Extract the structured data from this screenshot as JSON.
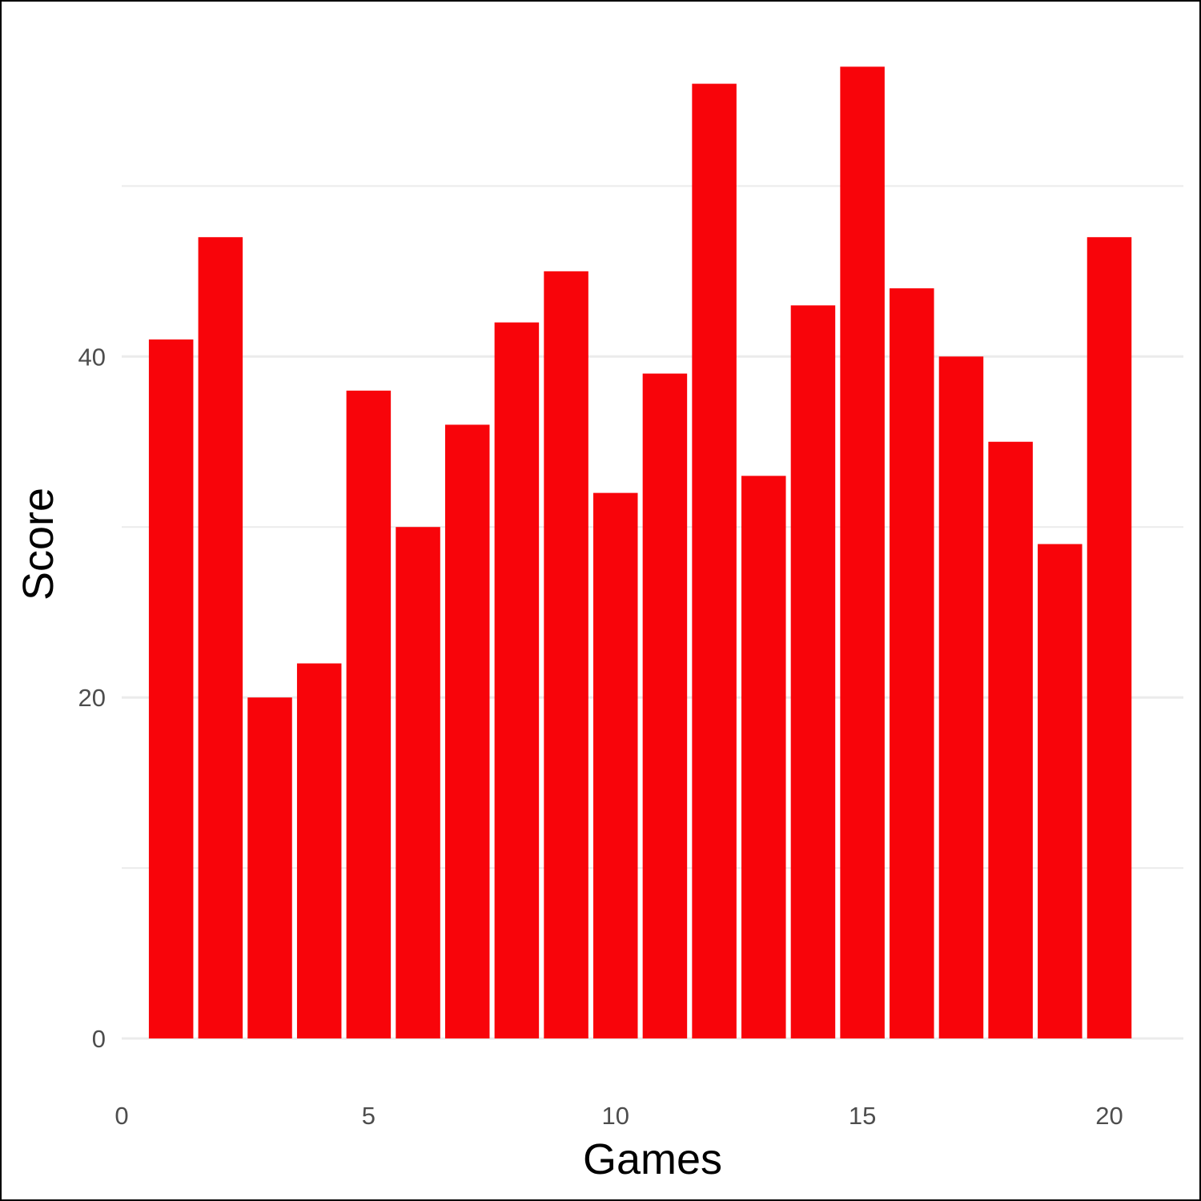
{
  "chart_data": {
    "type": "bar",
    "x": [
      1,
      2,
      3,
      4,
      5,
      6,
      7,
      8,
      9,
      10,
      11,
      12,
      13,
      14,
      15,
      16,
      17,
      18,
      19,
      20
    ],
    "values": [
      41,
      47,
      20,
      22,
      38,
      30,
      36,
      42,
      45,
      32,
      39,
      56,
      33,
      43,
      57,
      44,
      40,
      35,
      29,
      47
    ],
    "title": "",
    "xlabel": "Games",
    "ylabel": "Score",
    "xlim": [
      0,
      21.5
    ],
    "ylim": [
      0,
      58
    ],
    "x_ticks": [
      0,
      5,
      10,
      15,
      20
    ],
    "y_ticks": [
      0,
      20,
      40
    ],
    "y_minor_gridlines": [
      10,
      30,
      50
    ],
    "grid": true,
    "legend": "none",
    "colors": {
      "bar": "#f8040a",
      "grid": "#ebebeb",
      "tick_text": "#4d4d4d",
      "axis_title": "#000000"
    }
  }
}
